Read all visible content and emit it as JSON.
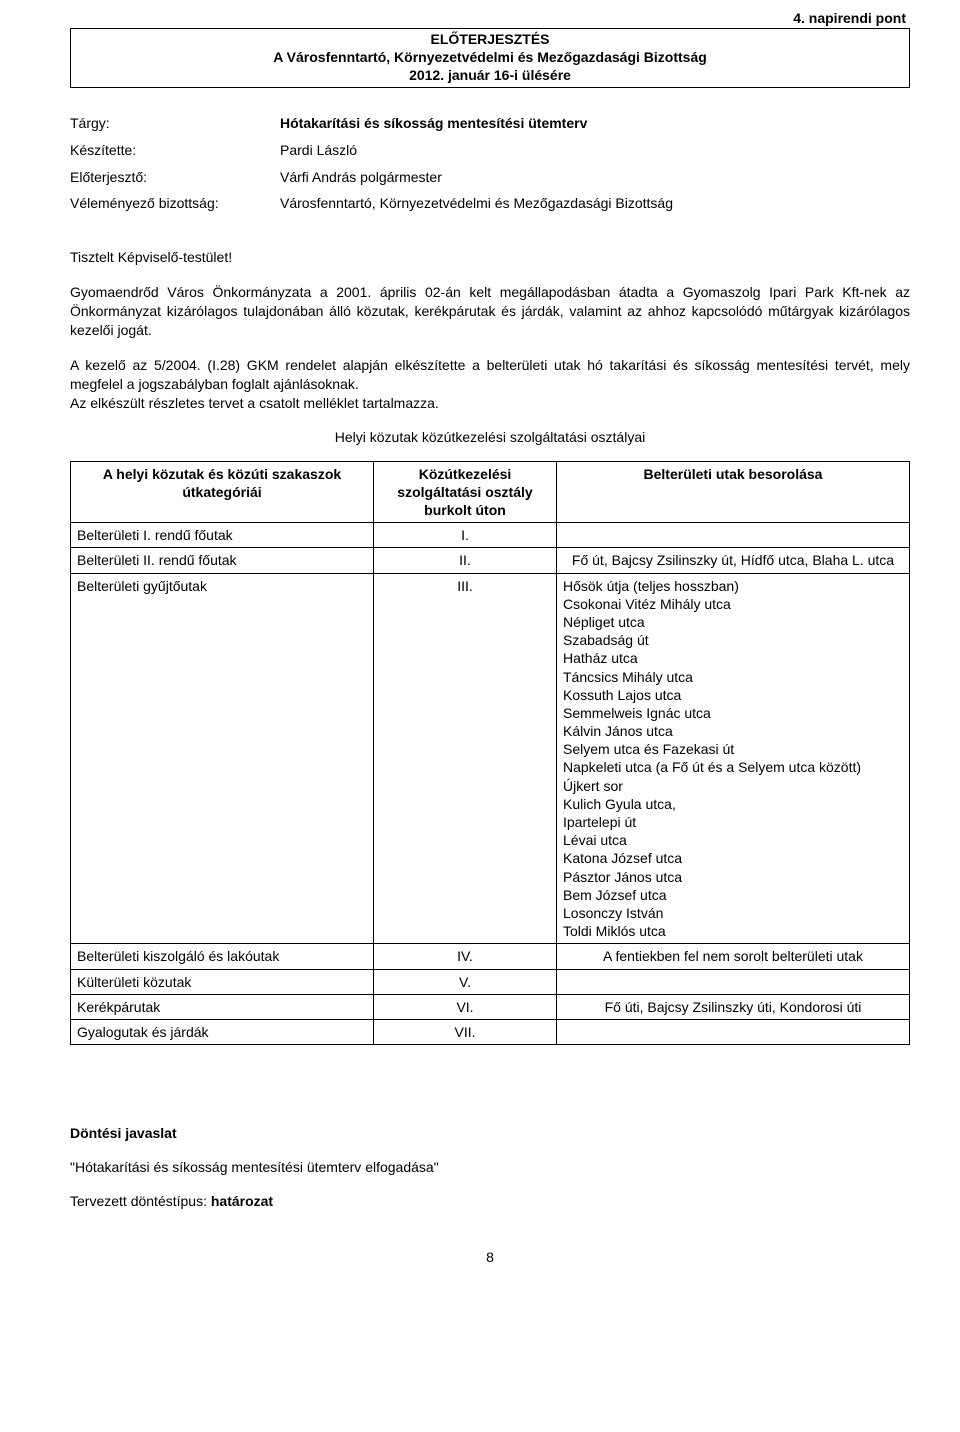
{
  "agenda": "4. napirendi pont",
  "header": {
    "line1": "ELŐTERJESZTÉS",
    "line2": "A Városfenntartó, Környezetvédelmi és Mezőgazdasági Bizottság",
    "line3": "2012. január 16-i ülésére"
  },
  "meta": {
    "targy_label": "Tárgy:",
    "targy_value": "Hótakarítási és síkosság mentesítési ütemterv",
    "keszitette_label": "Készítette:",
    "keszitette_value": "Pardi László",
    "eloterjeszto_label": "Előterjesztő:",
    "eloterjeszto_value": "Várfi András polgármester",
    "velemenyezo_label": "Véleményező bizottság:",
    "velemenyezo_value": "Városfenntartó, Környezetvédelmi és Mezőgazdasági Bizottság"
  },
  "salutation": "Tisztelt Képviselő-testület!",
  "para1": "Gyomaendrőd Város Önkormányzata a 2001. április 02-án kelt megállapodásban átadta a Gyomaszolg Ipari Park Kft-nek az Önkormányzat kizárólagos tulajdonában álló közutak, kerékpárutak és járdák, valamint az ahhoz kapcsolódó műtárgyak kizárólagos kezelői jogát.",
  "para2": "A kezelő az 5/2004. (I.28) GKM rendelet alapján elkészítette a belterületi utak hó takarítási és síkosság mentesítési tervét, mely megfelel a jogszabályban foglalt ajánlásoknak.",
  "para3": "Az elkészült részletes tervet a csatolt melléklet tartalmazza.",
  "subtitle": "Helyi közutak közútkezelési szolgáltatási osztályai",
  "table": {
    "head_col1": "A helyi közutak és közúti szakaszok útkategóriái",
    "head_col2": "Közútkezelési szolgáltatási osztály burkolt úton",
    "head_col3": "Belterületi utak besorolása",
    "rows": [
      {
        "c1": "Belterületi I. rendű főutak",
        "c2": "I.",
        "c3": "",
        "align": "center"
      },
      {
        "c1": "Belterületi II. rendű főutak",
        "c2": "II.",
        "c3": "Fő út, Bajcsy Zsilinszky út, Hídfő utca, Blaha L. utca",
        "align": "center"
      },
      {
        "c1": "Belterületi gyűjtőutak",
        "c2": "III.",
        "c3_list": [
          "Hősök útja (teljes hosszban)",
          "Csokonai Vitéz Mihály utca",
          "Népliget utca",
          "Szabadság út",
          "Hatház utca",
          "Táncsics Mihály utca",
          "Kossuth Lajos utca",
          "Semmelweis Ignác utca",
          "Kálvin János utca",
          "Selyem utca és Fazekasi út",
          "Napkeleti utca (a Fő út és a Selyem utca között)",
          "Újkert sor",
          "Kulich Gyula utca,",
          "Ipartelepi út",
          "Lévai utca",
          "Katona József utca",
          "Pásztor János utca",
          "Bem József utca",
          "Losonczy István",
          "Toldi Miklós utca"
        ],
        "align": "left"
      },
      {
        "c1": "Belterületi kiszolgáló és lakóutak",
        "c2": "IV.",
        "c3": "A fentiekben fel nem sorolt belterületi utak",
        "align": "center"
      },
      {
        "c1": "Külterületi közutak",
        "c2": "V.",
        "c3": "",
        "align": "center"
      },
      {
        "c1": "Kerékpárutak",
        "c2": "VI.",
        "c3": "Fő úti, Bajcsy Zsilinszky úti, Kondorosi úti",
        "align": "center"
      },
      {
        "c1": "Gyalogutak és járdák",
        "c2": "VII.",
        "c3": "",
        "align": "center"
      }
    ]
  },
  "decision": {
    "heading": "Döntési javaslat",
    "quote": "\"Hótakarítási és síkosság mentesítési ütemterv elfogadása\"",
    "type_label": "Tervezett döntéstípus: ",
    "type_value": "határozat"
  },
  "page_number": "8"
}
